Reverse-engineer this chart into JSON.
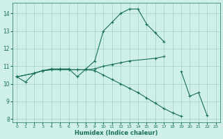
{
  "bg_color": "#cff0e8",
  "grid_color": "#a8d8cc",
  "line_color": "#1a6e5e",
  "xlabel": "Humidex (Indice chaleur)",
  "xlim": [
    -0.5,
    23.5
  ],
  "ylim": [
    7.8,
    14.6
  ],
  "yticks": [
    8,
    9,
    10,
    11,
    12,
    13,
    14
  ],
  "xticks": [
    0,
    1,
    2,
    3,
    4,
    5,
    6,
    7,
    8,
    9,
    10,
    11,
    12,
    13,
    14,
    15,
    16,
    17,
    18,
    19,
    20,
    21,
    22,
    23
  ],
  "series": [
    {
      "x": [
        0,
        1,
        2,
        3,
        4,
        5,
        6,
        7,
        8,
        9,
        10,
        11,
        12,
        13,
        14,
        15,
        16,
        17
      ],
      "y": [
        10.4,
        10.1,
        10.6,
        10.75,
        10.85,
        10.85,
        10.85,
        10.4,
        10.85,
        11.3,
        13.0,
        13.5,
        14.0,
        14.25,
        14.25,
        13.4,
        12.9,
        12.4
      ]
    },
    {
      "x": [
        0,
        2,
        3,
        4,
        5,
        6,
        7,
        8,
        9,
        10,
        11,
        12,
        13,
        16,
        17
      ],
      "y": [
        10.4,
        10.6,
        10.75,
        10.8,
        10.8,
        10.8,
        10.8,
        10.8,
        10.85,
        11.0,
        11.1,
        11.2,
        11.3,
        11.45,
        11.55
      ]
    },
    {
      "x": [
        0,
        2,
        3,
        4,
        5,
        6,
        7,
        8,
        9,
        10,
        11,
        12,
        13,
        14,
        15,
        16,
        17,
        18,
        19,
        20,
        21,
        22,
        23
      ],
      "y": [
        10.4,
        10.6,
        10.75,
        10.8,
        10.8,
        10.8,
        10.8,
        10.8,
        10.75,
        10.5,
        10.25,
        10.0,
        9.75,
        9.5,
        9.2,
        8.9,
        8.6,
        8.35,
        8.15,
        null,
        null,
        null,
        null
      ]
    },
    {
      "x": [
        19,
        20,
        21,
        22
      ],
      "y": [
        10.7,
        9.3,
        9.5,
        8.2
      ]
    }
  ]
}
